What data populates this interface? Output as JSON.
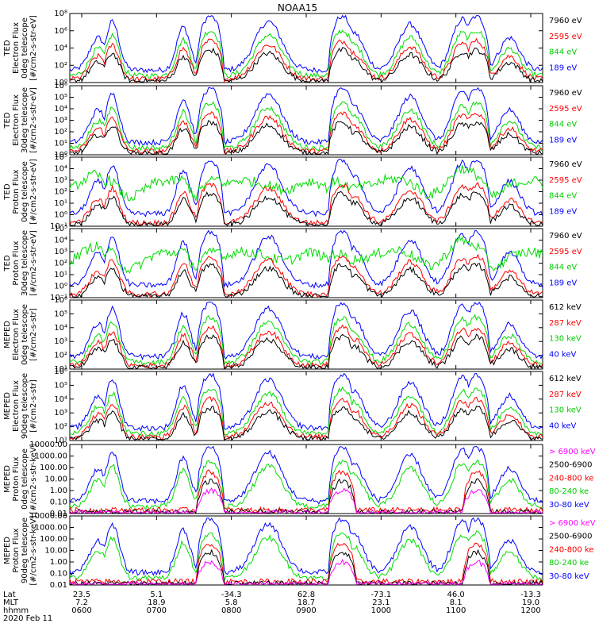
{
  "chart_data": {
    "type": "line",
    "title": "NOAA15",
    "x_time_labels": [
      "0600",
      "0700",
      "0800",
      "0900",
      "1000",
      "1100",
      "1200"
    ],
    "date_label": "2020 Feb 11",
    "bottom_axis": {
      "row_labels": [
        "Lat",
        "MLT",
        "hhmm"
      ],
      "lat": [
        "23.5",
        "5.1",
        "-34.3",
        "62.8",
        "-73.1",
        "46.0",
        "-13.3"
      ],
      "mlt": [
        "7.2",
        "18.9",
        "5.8",
        "18.7",
        "23.1",
        "8.1",
        "19.0"
      ],
      "hhmm": [
        "0600",
        "0700",
        "0800",
        "0900",
        "1000",
        "1100",
        "1200"
      ]
    },
    "series_colors": [
      "#0000ff",
      "#00dd00",
      "#ff0000",
      "#000000",
      "#ff00ff"
    ],
    "panels": [
      {
        "ylabel": [
          "TED",
          "Electron Flux",
          "0deg telescope",
          "[#/cm2-s-str-eV]"
        ],
        "yticks": [
          "10⁰",
          "10²",
          "10⁴",
          "10⁶",
          "10⁸"
        ],
        "legend": [
          {
            "label": "7960 eV",
            "color": "#000000"
          },
          {
            "label": "2595 eV",
            "color": "#ff0000"
          },
          {
            "label": "844 eV",
            "color": "#00cc00"
          },
          {
            "label": "189 eV",
            "color": "#0000ff"
          }
        ]
      },
      {
        "ylabel": [
          "TED",
          "Electron Flux",
          "30deg telescope",
          "[#/cm2-s-str-eV]"
        ],
        "yticks": [
          "10⁰",
          "10¹",
          "10²",
          "10³",
          "10⁴",
          "10⁵",
          "10⁶"
        ],
        "legend": [
          {
            "label": "7960 eV",
            "color": "#000000"
          },
          {
            "label": "2595 eV",
            "color": "#ff0000"
          },
          {
            "label": "844 eV",
            "color": "#00cc00"
          },
          {
            "label": "189 eV",
            "color": "#0000ff"
          }
        ]
      },
      {
        "ylabel": [
          "TED",
          "Proton Flux",
          "0deg telescope",
          "[#/cm2-s-str-eV]"
        ],
        "yticks": [
          "10⁻¹",
          "10⁰",
          "10¹",
          "10²",
          "10³",
          "10⁴",
          "10⁵"
        ],
        "legend": [
          {
            "label": "7960 eV",
            "color": "#000000"
          },
          {
            "label": "2595 eV",
            "color": "#ff0000"
          },
          {
            "label": "844 eV",
            "color": "#00cc00"
          },
          {
            "label": "189 eV",
            "color": "#0000ff"
          }
        ]
      },
      {
        "ylabel": [
          "TED",
          "Proton Flux",
          "30deg telescope",
          "[#/cm2-s-str-eV]"
        ],
        "yticks": [
          "10⁻¹",
          "10⁰",
          "10¹",
          "10²",
          "10³",
          "10⁴",
          "10⁵"
        ],
        "legend": [
          {
            "label": "7960 eV",
            "color": "#000000"
          },
          {
            "label": "2595 eV",
            "color": "#ff0000"
          },
          {
            "label": "844 eV",
            "color": "#00cc00"
          },
          {
            "label": "189 eV",
            "color": "#0000ff"
          }
        ]
      },
      {
        "ylabel": [
          "MEPED",
          "Electron Flux",
          "0deg telescope",
          "[#/cm2-s-str]"
        ],
        "yticks": [
          "10¹",
          "10²",
          "10³",
          "10⁴",
          "10⁵",
          "10⁶"
        ],
        "legend": [
          {
            "label": "612 keV",
            "color": "#000000"
          },
          {
            "label": "287 keV",
            "color": "#ff0000"
          },
          {
            "label": "130 keV",
            "color": "#00cc00"
          },
          {
            "label": "40 keV",
            "color": "#0000ff"
          }
        ]
      },
      {
        "ylabel": [
          "MEPED",
          "Electron Flux",
          "90deg telescope",
          "[#/cm2-s-str]"
        ],
        "yticks": [
          "10¹",
          "10²",
          "10³",
          "10⁴",
          "10⁵",
          "10⁶"
        ],
        "legend": [
          {
            "label": "612 keV",
            "color": "#000000"
          },
          {
            "label": "287 keV",
            "color": "#ff0000"
          },
          {
            "label": "130 keV",
            "color": "#00cc00"
          },
          {
            "label": "40 keV",
            "color": "#0000ff"
          }
        ]
      },
      {
        "ylabel": [
          "MEPED",
          "Proton Flux",
          "0deg telescope",
          "[#/cm2-s-str-keV]"
        ],
        "yticks": [
          "0.01",
          "0.10",
          "1.00",
          "10.00",
          "100.00",
          "1000.00",
          "10000.00"
        ],
        "legend": [
          {
            "label": "> 6900 keV",
            "color": "#ff00ff"
          },
          {
            "label": "2500-6900",
            "color": "#000000"
          },
          {
            "label": "240-800 ke",
            "color": "#ff0000"
          },
          {
            "label": "80-240 ke",
            "color": "#00cc00"
          },
          {
            "label": "30-80 keV",
            "color": "#0000ff"
          }
        ]
      },
      {
        "ylabel": [
          "MEPED",
          "Proton Flux",
          "90deg telescope",
          "[#/cm2-s-str-keV]"
        ],
        "yticks": [
          "0.01",
          "0.10",
          "1.00",
          "10.00",
          "100.00",
          "1000.00",
          "10000.00"
        ],
        "legend": [
          {
            "label": "> 6900 keV",
            "color": "#ff00ff"
          },
          {
            "label": "2500-6900",
            "color": "#000000"
          },
          {
            "label": "240-800 ke",
            "color": "#ff0000"
          },
          {
            "label": "80-240 ke",
            "color": "#00cc00"
          },
          {
            "label": "30-80 keV",
            "color": "#0000ff"
          }
        ]
      }
    ]
  }
}
